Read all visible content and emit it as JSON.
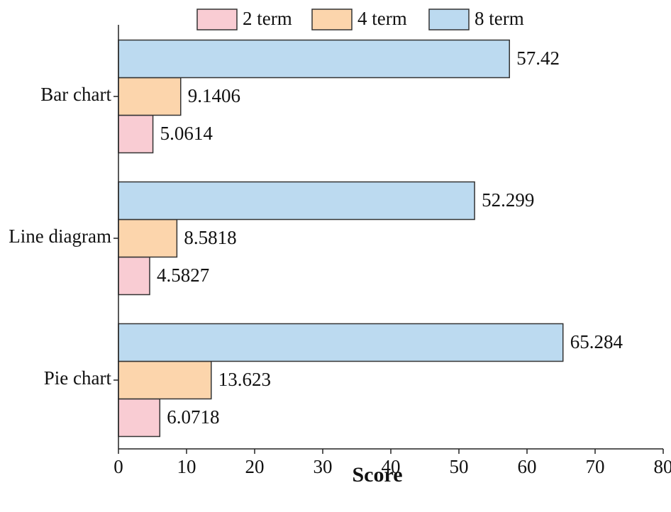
{
  "chart_data": {
    "type": "barh",
    "categories": [
      "Bar chart",
      "Line diagram",
      "Pie chart"
    ],
    "series": [
      {
        "name": "2 term",
        "color": "#f9ccd3",
        "values": [
          5.0614,
          4.5827,
          6.0718
        ]
      },
      {
        "name": "4 term",
        "color": "#fcd5ac",
        "values": [
          9.1406,
          8.5818,
          13.623
        ]
      },
      {
        "name": "8 term",
        "color": "#bcdaf0",
        "values": [
          57.42,
          52.299,
          65.284
        ]
      }
    ],
    "xlabel": "Score",
    "xlim": [
      0,
      80
    ],
    "xticks": [
      0,
      10,
      20,
      30,
      40,
      50,
      60,
      70,
      80
    ],
    "legend": "top"
  }
}
